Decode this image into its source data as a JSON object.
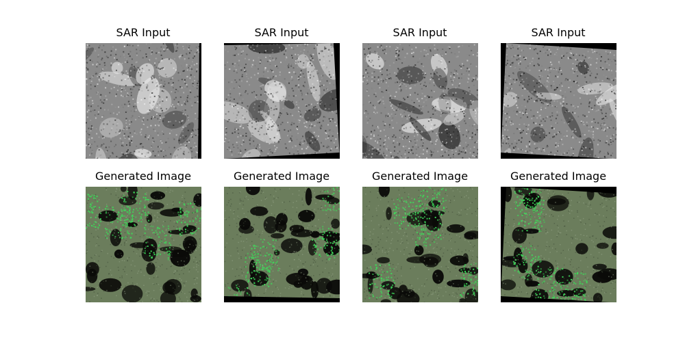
{
  "figure": {
    "rows": [
      {
        "row": "input",
        "panels": [
          {
            "title": "SAR Input"
          },
          {
            "title": "SAR Input"
          },
          {
            "title": "SAR Input"
          },
          {
            "title": "SAR Input"
          }
        ]
      },
      {
        "row": "generated",
        "panels": [
          {
            "title": "Generated Image"
          },
          {
            "title": "Generated Image"
          },
          {
            "title": "Generated Image"
          },
          {
            "title": "Generated Image"
          }
        ]
      }
    ],
    "colors": {
      "sar_background": "#8a8a8a",
      "sar_dark": "#2a2a2a",
      "sar_light": "#e6e6e6",
      "generated_background": "#6b7d5c",
      "generated_dark": "#0a0a08",
      "generated_highlight": "#3ddc5a",
      "padding_black": "#000000"
    }
  }
}
